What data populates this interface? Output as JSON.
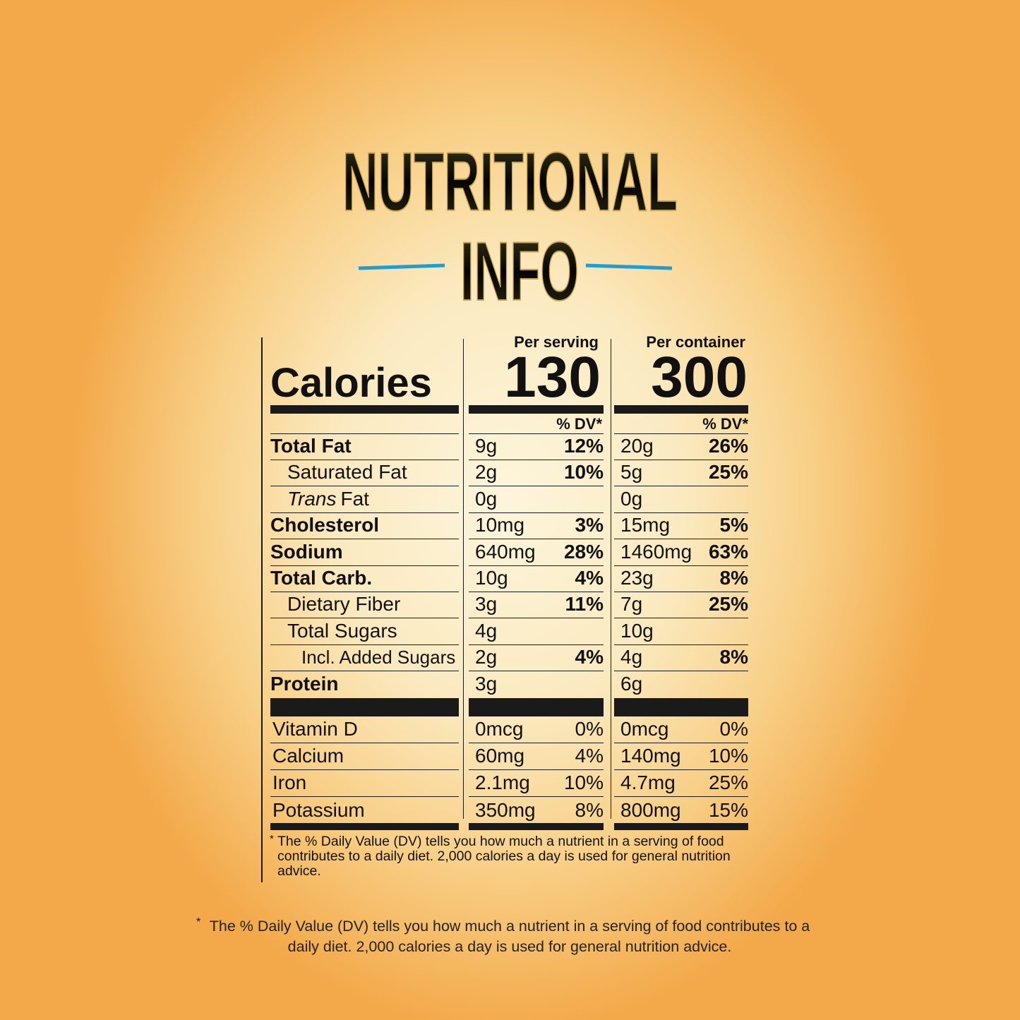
{
  "title": {
    "line1": "NUTRITIONAL",
    "line2": "INFO"
  },
  "label": {
    "columns": [
      "Per serving",
      "Per container"
    ],
    "calories": {
      "label": "Calories",
      "values": [
        "130",
        "300"
      ]
    },
    "dv_header": "% DV*",
    "nutrients": [
      {
        "name": "Total Fat",
        "serving": [
          "9g",
          "12%"
        ],
        "container": [
          "20g",
          "26%"
        ]
      },
      {
        "name": "Saturated Fat",
        "serving": [
          "2g",
          "10%"
        ],
        "container": [
          "5g",
          "25%"
        ]
      },
      {
        "name_italic": "Trans",
        "name": "Fat",
        "serving": [
          "0g"
        ],
        "container": [
          "0g"
        ]
      },
      {
        "name": "Cholesterol",
        "serving": [
          "10mg",
          "3%"
        ],
        "container": [
          "15mg",
          "5%"
        ]
      },
      {
        "name": "Sodium",
        "serving": [
          "640mg",
          "28%"
        ],
        "container": [
          "1460mg",
          "63%"
        ]
      },
      {
        "name": "Total Carb.",
        "serving": [
          "10g",
          "4%"
        ],
        "container": [
          "23g",
          "8%"
        ]
      },
      {
        "name": "Dietary Fiber",
        "serving": [
          "3g",
          "11%"
        ],
        "container": [
          "7g",
          "25%"
        ]
      },
      {
        "name": "Total Sugars",
        "serving": [
          "4g"
        ],
        "container": [
          "10g"
        ]
      },
      {
        "name": "Incl. Added Sugars",
        "serving": [
          "2g",
          "4%"
        ],
        "container": [
          "4g",
          "8%"
        ]
      },
      {
        "name": "Protein",
        "serving": [
          "3g"
        ],
        "container": [
          "6g"
        ]
      }
    ],
    "vitamins": [
      {
        "name": "Vitamin D",
        "serving": [
          "0mcg",
          "0%"
        ],
        "container": [
          "0mcg",
          "0%"
        ]
      },
      {
        "name": "Calcium",
        "serving": [
          "60mg",
          "4%"
        ],
        "container": [
          "140mg",
          "10%"
        ]
      },
      {
        "name": "Iron",
        "serving": [
          "2.1mg",
          "10%"
        ],
        "container": [
          "4.7mg",
          "25%"
        ]
      },
      {
        "name": "Potassium",
        "serving": [
          "350mg",
          "8%"
        ],
        "container": [
          "800mg",
          "15%"
        ]
      }
    ],
    "footnote": {
      "mark": "*",
      "text": "The % Daily Value (DV) tells you how much a nutrient in a serving of food contributes to a daily diet. 2,000 calories a day is used for general nutrition advice."
    }
  },
  "page_footnote": {
    "mark": "*",
    "text": "The % Daily Value (DV) tells you how much a nutrient in a serving of food contributes to a daily diet. 2,000 calories a day is used for general nutrition advice."
  }
}
